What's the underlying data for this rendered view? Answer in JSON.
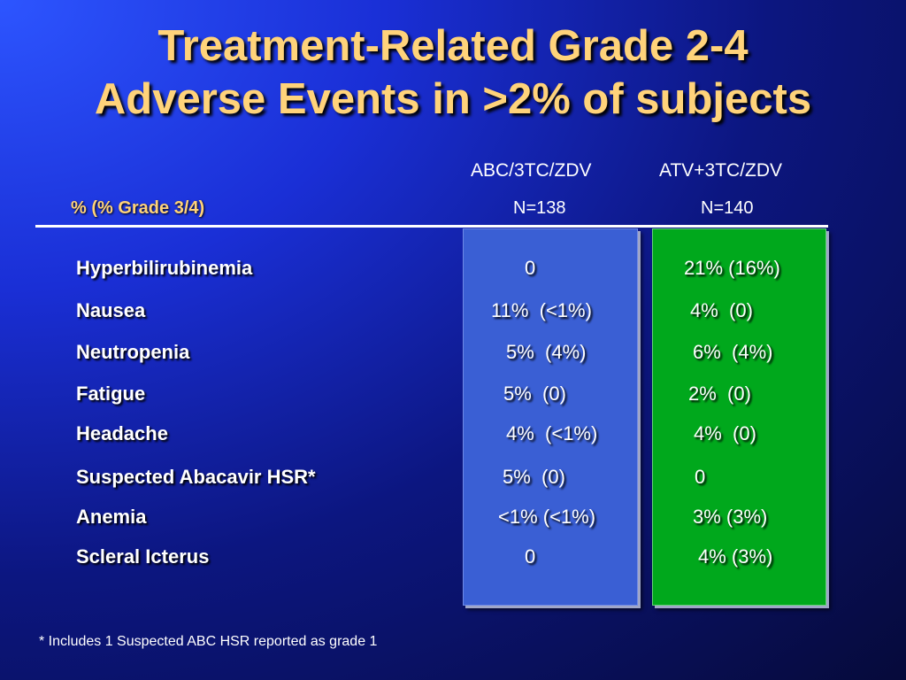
{
  "slide": {
    "title_line1": "Treatment-Related Grade 2-4",
    "title_line2": "Adverse Events in >2% of subjects",
    "subheading": "%  (% Grade 3/4)",
    "columns": [
      {
        "name": "ABC/3TC/ZDV",
        "n": "N=138",
        "panel_color": "#3a5fd4"
      },
      {
        "name": "ATV+3TC/ZDV",
        "n": "N=140",
        "panel_color": "#00a81c"
      }
    ],
    "rows": [
      {
        "label": "Hyperbilirubinemia",
        "abc": "0",
        "atv": "21% (16%)"
      },
      {
        "label": "Nausea",
        "abc": "11%  (<1%)",
        "atv": "4%  (0)"
      },
      {
        "label": "Neutropenia",
        "abc": "5%  (4%)",
        "atv": "6%  (4%)"
      },
      {
        "label": "Fatigue",
        "abc": "5%  (0)",
        "atv": "2%  (0)"
      },
      {
        "label": "Headache",
        "abc": "4%  (<1%)",
        "atv": "4%  (0)"
      },
      {
        "label": "Suspected Abacavir HSR*",
        "abc": "5%  (0)",
        "atv": "0"
      },
      {
        "label": "Anemia",
        "abc": "<1% (<1%)",
        "atv": "3% (3%)"
      },
      {
        "label": "Scleral Icterus",
        "abc": "0",
        "atv": "4% (3%)"
      }
    ],
    "footnote": "* Includes 1 Suspected ABC HSR reported as grade 1",
    "colors": {
      "title": "#ffd37a",
      "subheading": "#ffd37a",
      "text": "#ffffff"
    }
  }
}
